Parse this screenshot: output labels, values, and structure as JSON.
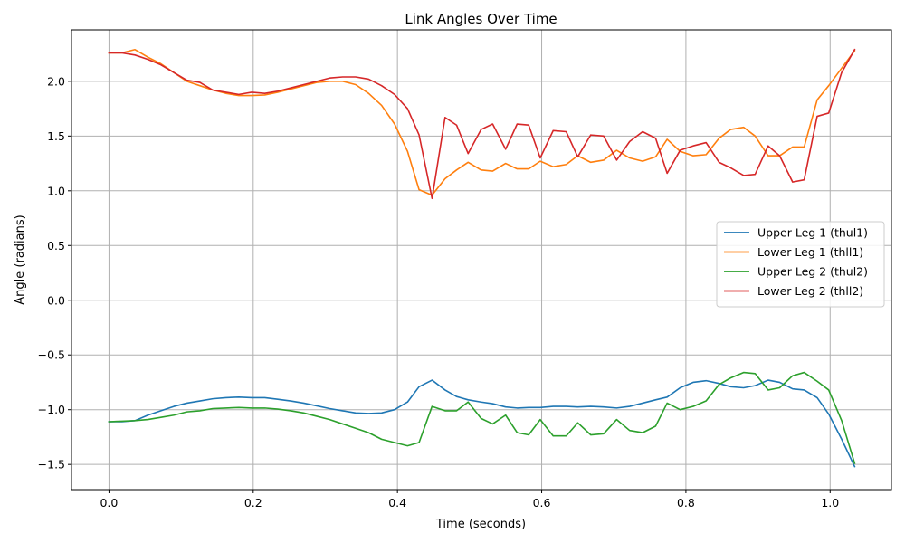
{
  "chart_data": {
    "type": "line",
    "title": "Link Angles Over Time",
    "xlabel": "Time (seconds)",
    "ylabel": "Angle (radians)",
    "xlim": [
      -0.052,
      1.085
    ],
    "ylim": [
      -1.73,
      2.47
    ],
    "xticks": [
      0.0,
      0.2,
      0.4,
      0.6,
      0.8,
      1.0
    ],
    "xtick_labels": [
      "0.0",
      "0.2",
      "0.4",
      "0.6",
      "0.8",
      "1.0"
    ],
    "yticks": [
      -1.5,
      -1.0,
      -0.5,
      0.0,
      0.5,
      1.0,
      1.5,
      2.0
    ],
    "ytick_labels": [
      "−1.5",
      "−1.0",
      "−0.5",
      "0.0",
      "0.5",
      "1.0",
      "1.5",
      "2.0"
    ],
    "grid": true,
    "legend_position": "right",
    "x": [
      0.0,
      0.018,
      0.036,
      0.054,
      0.072,
      0.09,
      0.108,
      0.126,
      0.144,
      0.162,
      0.18,
      0.198,
      0.216,
      0.234,
      0.252,
      0.27,
      0.288,
      0.306,
      0.324,
      0.342,
      0.36,
      0.378,
      0.396,
      0.414,
      0.43,
      0.448,
      0.466,
      0.482,
      0.498,
      0.516,
      0.532,
      0.55,
      0.566,
      0.582,
      0.598,
      0.616,
      0.634,
      0.65,
      0.668,
      0.686,
      0.704,
      0.722,
      0.74,
      0.758,
      0.774,
      0.792,
      0.81,
      0.828,
      0.846,
      0.862,
      0.88,
      0.896,
      0.914,
      0.93,
      0.948,
      0.964,
      0.982,
      0.998,
      1.016,
      1.034
    ],
    "series": [
      {
        "name": "Upper Leg 1 (thul1)",
        "color": "#1f77b4",
        "values": [
          -1.11,
          -1.11,
          -1.1,
          -1.05,
          -1.01,
          -0.97,
          -0.94,
          -0.92,
          -0.9,
          -0.89,
          -0.885,
          -0.89,
          -0.89,
          -0.905,
          -0.92,
          -0.94,
          -0.965,
          -0.99,
          -1.01,
          -1.03,
          -1.035,
          -1.03,
          -1.0,
          -0.93,
          -0.79,
          -0.73,
          -0.82,
          -0.88,
          -0.91,
          -0.93,
          -0.945,
          -0.975,
          -0.985,
          -0.98,
          -0.98,
          -0.97,
          -0.97,
          -0.975,
          -0.97,
          -0.975,
          -0.985,
          -0.97,
          -0.94,
          -0.91,
          -0.885,
          -0.8,
          -0.75,
          -0.735,
          -0.76,
          -0.79,
          -0.8,
          -0.78,
          -0.73,
          -0.75,
          -0.81,
          -0.82,
          -0.89,
          -1.04,
          -1.27,
          -1.52
        ]
      },
      {
        "name": "Lower Leg 1 (thll1)",
        "color": "#ff7f0e",
        "values": [
          2.26,
          2.26,
          2.29,
          2.22,
          2.16,
          2.08,
          2.0,
          1.96,
          1.92,
          1.89,
          1.87,
          1.87,
          1.875,
          1.9,
          1.93,
          1.96,
          1.99,
          2.0,
          2.0,
          1.97,
          1.89,
          1.78,
          1.61,
          1.36,
          1.01,
          0.96,
          1.11,
          1.19,
          1.26,
          1.19,
          1.18,
          1.25,
          1.2,
          1.2,
          1.27,
          1.22,
          1.24,
          1.32,
          1.26,
          1.28,
          1.37,
          1.3,
          1.27,
          1.31,
          1.47,
          1.36,
          1.32,
          1.33,
          1.48,
          1.56,
          1.58,
          1.5,
          1.32,
          1.32,
          1.4,
          1.4,
          1.83,
          1.96,
          2.12,
          2.28
        ]
      },
      {
        "name": "Upper Leg 2 (thul2)",
        "color": "#2ca02c",
        "values": [
          -1.11,
          -1.105,
          -1.1,
          -1.09,
          -1.07,
          -1.05,
          -1.02,
          -1.01,
          -0.99,
          -0.985,
          -0.98,
          -0.985,
          -0.985,
          -0.995,
          -1.01,
          -1.03,
          -1.06,
          -1.09,
          -1.13,
          -1.17,
          -1.21,
          -1.27,
          -1.3,
          -1.33,
          -1.3,
          -0.97,
          -1.01,
          -1.01,
          -0.93,
          -1.08,
          -1.13,
          -1.05,
          -1.21,
          -1.23,
          -1.09,
          -1.24,
          -1.24,
          -1.12,
          -1.23,
          -1.22,
          -1.09,
          -1.19,
          -1.21,
          -1.15,
          -0.94,
          -1.0,
          -0.97,
          -0.92,
          -0.77,
          -0.71,
          -0.66,
          -0.67,
          -0.82,
          -0.8,
          -0.69,
          -0.66,
          -0.74,
          -0.82,
          -1.1,
          -1.49
        ]
      },
      {
        "name": "Lower Leg 2 (thll2)",
        "color": "#d62728",
        "values": [
          2.26,
          2.26,
          2.24,
          2.2,
          2.15,
          2.08,
          2.01,
          1.99,
          1.92,
          1.9,
          1.88,
          1.9,
          1.89,
          1.91,
          1.94,
          1.97,
          2.0,
          2.03,
          2.04,
          2.04,
          2.02,
          1.96,
          1.88,
          1.75,
          1.51,
          0.93,
          1.67,
          1.6,
          1.34,
          1.56,
          1.61,
          1.38,
          1.61,
          1.6,
          1.3,
          1.55,
          1.54,
          1.31,
          1.51,
          1.5,
          1.28,
          1.45,
          1.54,
          1.48,
          1.16,
          1.37,
          1.41,
          1.44,
          1.26,
          1.21,
          1.14,
          1.15,
          1.41,
          1.32,
          1.08,
          1.1,
          1.68,
          1.71,
          2.08,
          2.29
        ]
      }
    ]
  }
}
